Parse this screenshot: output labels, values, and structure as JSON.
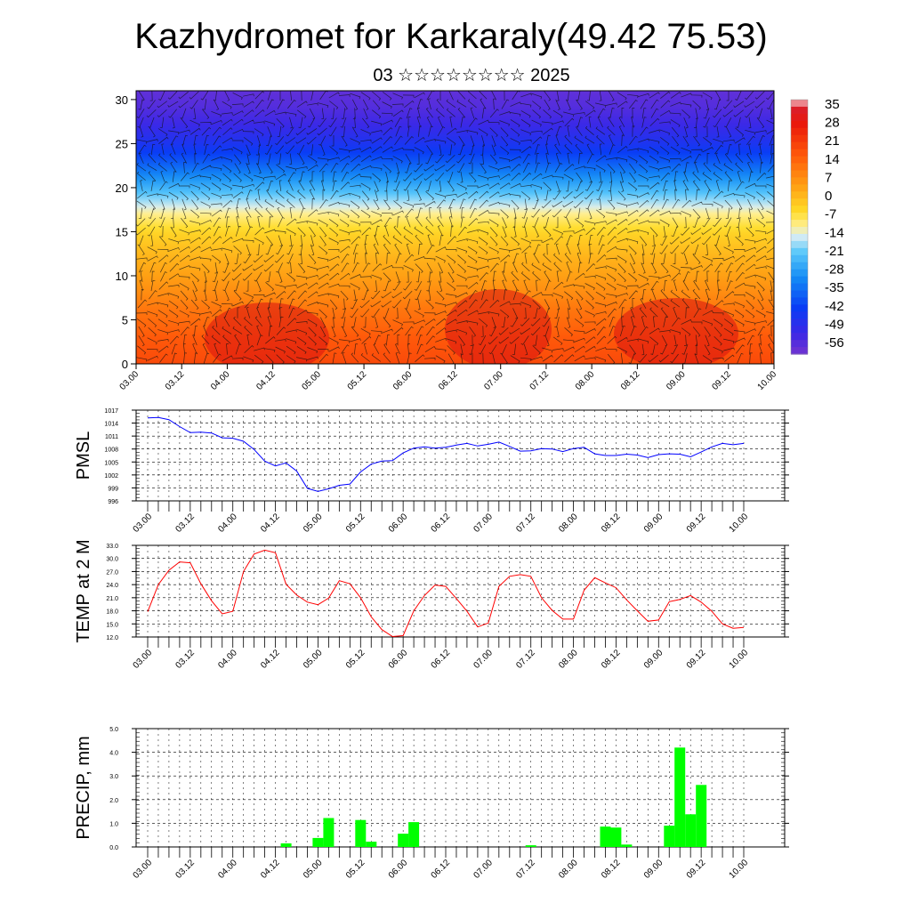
{
  "title": "Kazhydromet for Karkaraly(49.42 75.53)",
  "subtitle": "03 ☆☆☆☆☆☆☆☆ 2025",
  "time_labels": [
    "03.00",
    "03.12",
    "04.00",
    "04.12",
    "05.00",
    "05.12",
    "06.00",
    "06.12",
    "07.00",
    "07.12",
    "08.00",
    "08.12",
    "09.00",
    "09.12",
    "10.00"
  ],
  "chart_data": [
    {
      "type": "heatmap",
      "name": "cross-section",
      "x": "time_labels",
      "yticks": [
        0,
        5,
        10,
        15,
        20,
        25,
        30
      ],
      "ylim": [
        0,
        31
      ],
      "colorbar": {
        "labels": [
          "35",
          "28",
          "21",
          "14",
          "7",
          "0",
          "-7",
          "-14",
          "-21",
          "-28",
          "-35",
          "-42",
          "-49",
          "-56"
        ],
        "range": [
          -63,
          42
        ]
      },
      "profile_levels": [
        0,
        3,
        6,
        9,
        12,
        15,
        17,
        19,
        21,
        23,
        25,
        27,
        29,
        31
      ],
      "profile_values": [
        22,
        19,
        14,
        8,
        3,
        -3,
        -10,
        -20,
        -30,
        -40,
        -48,
        -54,
        -58,
        -60
      ]
    },
    {
      "type": "line",
      "ylabel": "PMSL",
      "ylim": [
        996,
        1017
      ],
      "yticks": [
        "1017",
        "1014",
        "1011",
        "1008",
        "1005",
        "1002",
        "999",
        "996"
      ],
      "color": "#0000ff",
      "values": [
        1015.2,
        1015.3,
        1014.8,
        1013.2,
        1011.8,
        1011.9,
        1011.7,
        1010.6,
        1010.5,
        1009.8,
        1007.9,
        1005.2,
        1004.1,
        1004.8,
        1002.9,
        998.9,
        998.2,
        998.8,
        999.6,
        999.9,
        1002.7,
        1004.5,
        1005.2,
        1005.3,
        1007.1,
        1008.2,
        1008.5,
        1008.2,
        1008.4,
        1008.9,
        1009.3,
        1008.7,
        1009.1,
        1009.6,
        1008.6,
        1007.5,
        1007.6,
        1008.1,
        1008.0,
        1007.4,
        1008.1,
        1008.4,
        1006.9,
        1006.5,
        1006.5,
        1006.8,
        1006.6,
        1006.0,
        1006.7,
        1006.9,
        1006.8,
        1006.2,
        1007.3,
        1008.5,
        1009.3,
        1009.0,
        1009.3
      ]
    },
    {
      "type": "line",
      "ylabel": "TEMP at 2 M",
      "ylim": [
        12,
        33
      ],
      "yticks": [
        "33.0",
        "30.0",
        "27.0",
        "24.0",
        "21.0",
        "18.0",
        "15.0",
        "12.0"
      ],
      "color": "#ff0000",
      "values": [
        17.8,
        24.0,
        27.3,
        29.2,
        29.0,
        24.2,
        20.3,
        17.3,
        17.9,
        27.0,
        31.0,
        31.9,
        31.3,
        24.1,
        21.6,
        20.0,
        19.4,
        20.9,
        24.9,
        24.2,
        21.0,
        16.6,
        13.7,
        12.1,
        12.3,
        18.0,
        21.5,
        23.9,
        23.6,
        20.8,
        17.9,
        14.3,
        15.2,
        23.6,
        25.9,
        26.3,
        25.9,
        21.0,
        18.1,
        16.1,
        16.1,
        22.7,
        25.6,
        24.4,
        23.3,
        20.5,
        18.0,
        15.6,
        15.9,
        20.1,
        20.6,
        21.5,
        20.0,
        17.9,
        15.0,
        14.0,
        14.2
      ]
    },
    {
      "type": "bar",
      "ylabel": "PRECIP, mm",
      "ylim": [
        0,
        5
      ],
      "yticks": [
        "5.0",
        "4.0",
        "3.0",
        "2.0",
        "1.0",
        "0.0"
      ],
      "color": "#00ff00",
      "values": [
        0,
        0,
        0,
        0,
        0,
        0,
        0,
        0,
        0,
        0,
        0,
        0,
        0,
        0.15,
        0,
        0,
        0.38,
        1.22,
        0,
        0,
        1.14,
        0.22,
        0,
        0,
        0.56,
        1.05,
        0,
        0,
        0,
        0,
        0,
        0,
        0,
        0,
        0,
        0,
        0.07,
        0,
        0,
        0,
        0,
        0,
        0,
        0.86,
        0.82,
        0.1,
        0,
        0,
        0,
        0.9,
        4.2,
        1.38,
        2.62,
        0,
        0,
        0,
        0
      ]
    }
  ]
}
